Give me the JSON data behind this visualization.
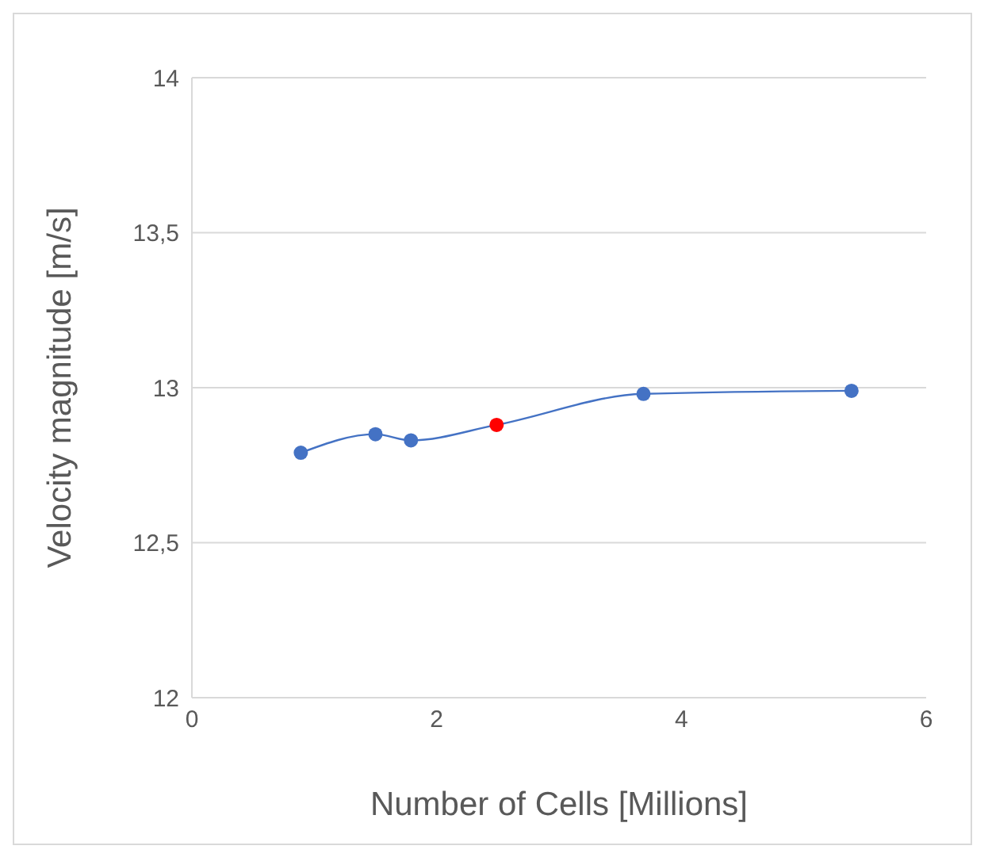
{
  "chart_data": {
    "type": "line",
    "xlabel": "Number of Cells [Millions]",
    "ylabel": "Velocity magnitude [m/s]",
    "xlim": [
      0,
      6
    ],
    "xticks": [
      0,
      2,
      4,
      6
    ],
    "ylim": [
      12,
      14
    ],
    "yticks": [
      12,
      {
        "value": 12.5,
        "label": "12,5"
      },
      13,
      {
        "value": 13.5,
        "label": "13,5"
      },
      14
    ],
    "grid": "y",
    "marker": "circle",
    "line_style": "solid",
    "x": [
      0.89,
      1.5,
      1.79,
      2.49,
      3.69,
      5.39
    ],
    "series": [
      {
        "color": "#4472c4",
        "colors": [
          "#4472c4",
          "#4472c4",
          "#4472c4",
          "#ff0000",
          "#4472c4",
          "#4472c4"
        ],
        "values": [
          12.79,
          12.85,
          12.83,
          12.88,
          12.98,
          12.99
        ]
      }
    ]
  }
}
